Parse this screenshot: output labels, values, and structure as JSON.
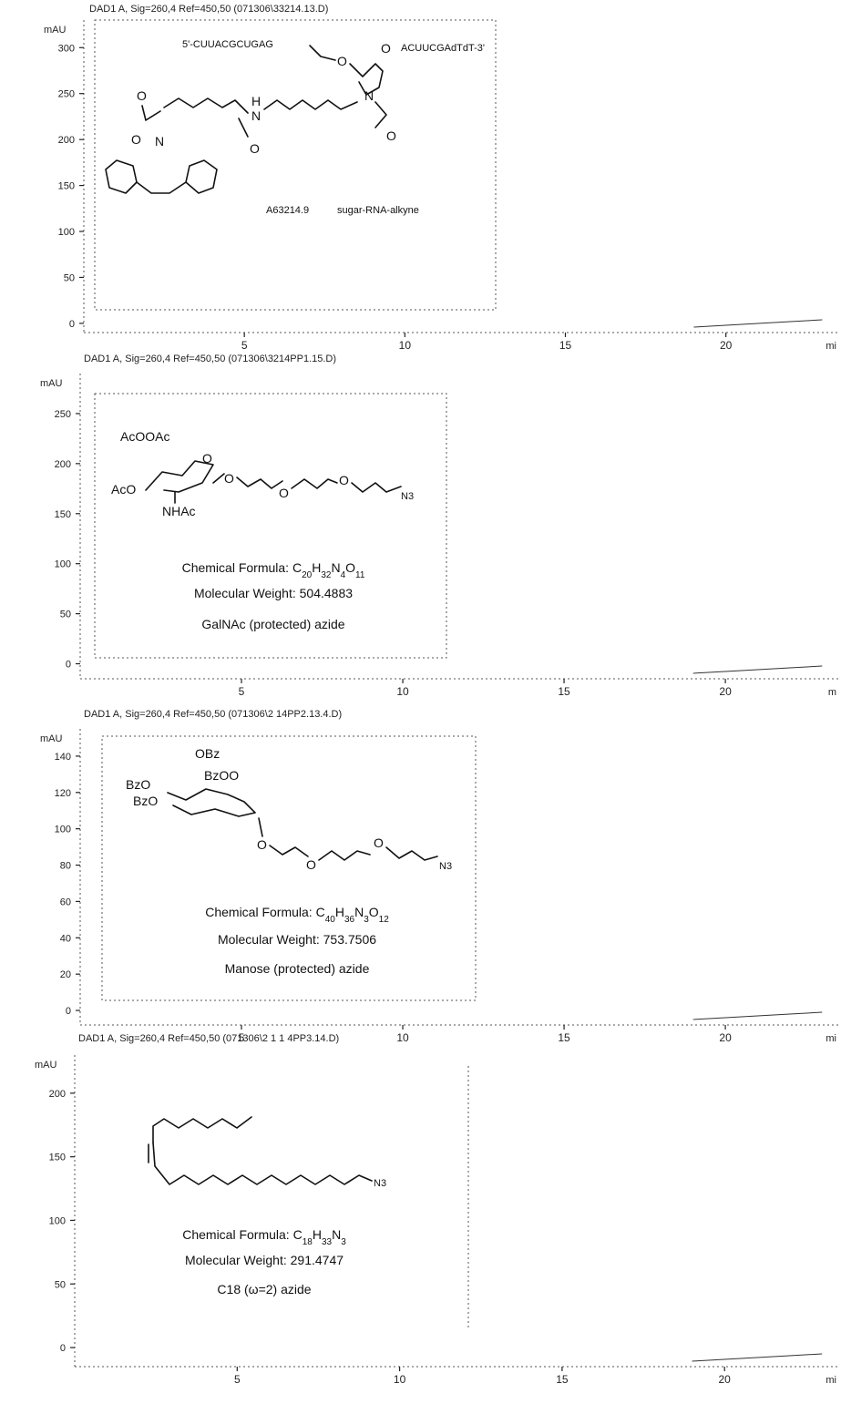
{
  "chart_data": [
    {
      "type": "line",
      "header": "DAD1 A, Sig=260,4 Ref=450,50 (071306\\33214.13.D)",
      "ylabel": "mAU",
      "yticks": [
        0,
        50,
        100,
        150,
        200,
        250,
        300
      ],
      "ylim": [
        -10,
        330
      ],
      "xticks": [
        5,
        10,
        15,
        20
      ],
      "xlim": [
        0,
        23.5
      ],
      "x_unit": "mi",
      "molecule": {
        "strand_label": "5'-CUUACGCUGAG",
        "strand_label_3": "ACUUCGAdTdT-3'",
        "sample_id": "A63214.9",
        "sample_name": "sugar-RNA-alkyne"
      }
    },
    {
      "type": "line",
      "header": "DAD1 A, Sig=260,4 Ref=450,50 (071306\\3214PP1.15.D)",
      "ylabel": "mAU",
      "yticks": [
        0,
        50,
        100,
        150,
        200,
        250
      ],
      "ylim": [
        -15,
        290
      ],
      "xticks": [
        5,
        10,
        15,
        20
      ],
      "xlim": [
        0,
        23.5
      ],
      "x_unit": "m",
      "formula_label": "Chemical Formula: C",
      "formula_parts": [
        "20",
        "H",
        "32",
        "N",
        "4",
        "O",
        "11"
      ],
      "mw": "Molecular Weight: 504.4883",
      "compound": "GalNAc (protected) azide"
    },
    {
      "type": "line",
      "header": "DAD1 A, Sig=260,4 Ref=450,50 (071306\\2 14PP2.13.4.D)",
      "ylabel": "mAU",
      "yticks": [
        0,
        20,
        40,
        60,
        80,
        100,
        120,
        140
      ],
      "ylim": [
        -8,
        155
      ],
      "xticks": [
        5,
        10,
        15,
        20
      ],
      "xlim": [
        0,
        23.5
      ],
      "x_unit": "mi",
      "formula_label": "Chemical Formula: C",
      "formula_parts": [
        "40",
        "H",
        "36",
        "N",
        "3",
        "O",
        "12"
      ],
      "mw": "Molecular Weight: 753.7506",
      "compound": "Manose (protected) azide"
    },
    {
      "type": "line",
      "header": "DAD1 A, Sig=260,4 Ref=450,50 (071306\\2 1 1 4PP3.14.D)",
      "ylabel": "mAU",
      "yticks": [
        0,
        50,
        100,
        150,
        200
      ],
      "ylim": [
        -15,
        230
      ],
      "xticks": [
        5,
        10,
        15,
        20
      ],
      "xlim": [
        0,
        23.5
      ],
      "x_unit": "mi",
      "formula_label": "Chemical Formula: C",
      "formula_parts": [
        "18",
        "H",
        "33",
        "N",
        "3"
      ],
      "mw": "Molecular Weight: 291.4747",
      "compound": "C18 (ω=2) azide"
    }
  ],
  "atoms": {
    "o": "O",
    "n": "N",
    "h": "H",
    "n3": "N3",
    "ac_pair": "AcOOAc",
    "aco": "AcO",
    "nhac": "NHAc",
    "obz": "OBz",
    "bzo": "BzO",
    "bzoo": "BzOO"
  },
  "colors": {
    "axis": "#222222",
    "text": "#111111",
    "background": "#ffffff"
  }
}
